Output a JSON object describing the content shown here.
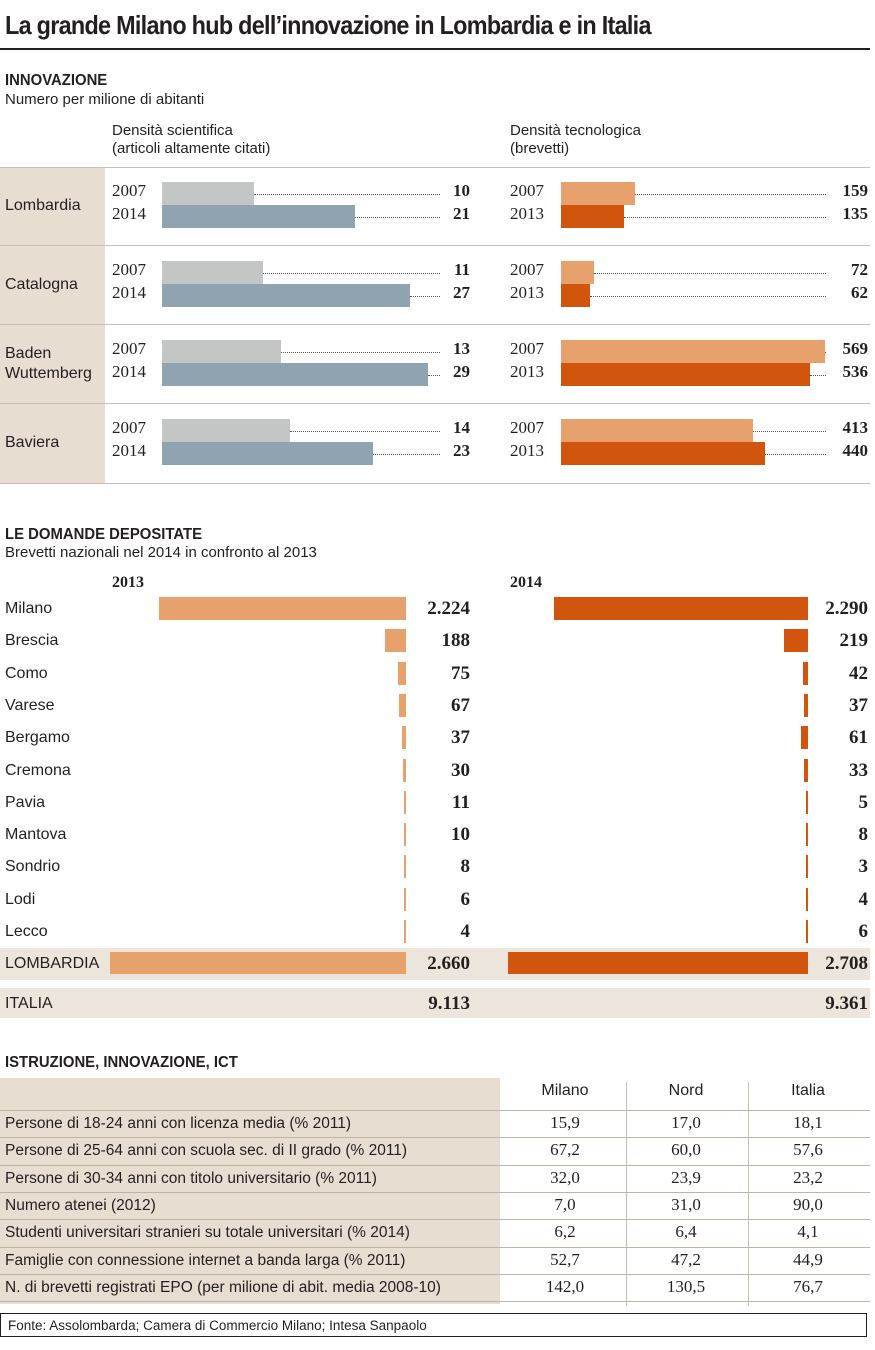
{
  "title": "La grande Milano hub dell’innovazione in Lombardia e in Italia",
  "colors": {
    "sci_a": "#c4c6c6",
    "sci_b": "#8fa3b0",
    "tec_a": "#e6a16c",
    "tec_b": "#d2550e",
    "label_bg": "#e8ddd1",
    "row_bg": "#ece5dc",
    "row_bg2": "#f2ece5"
  },
  "innovazione": {
    "heading": "INNOVAZIONE",
    "subheading": "Numero per milione di abitanti",
    "col_sci": {
      "line1": "Densità scientifica",
      "line2": "(articoli altamente citati)"
    },
    "col_tec": {
      "line1": "Densità tecnologica",
      "line2": "(brevetti)"
    },
    "rows": [
      {
        "name_l1": "Lombardia",
        "name_l2": "",
        "sci": {
          "y1": "2007",
          "v1": 10,
          "y2": "2014",
          "v2": 21
        },
        "tec": {
          "y1": "2007",
          "v1": 159,
          "y2": "2013",
          "v2": 135
        }
      },
      {
        "name_l1": "Catalogna",
        "name_l2": "",
        "sci": {
          "y1": "2007",
          "v1": 11,
          "y2": "2014",
          "v2": 27
        },
        "tec": {
          "y1": "2007",
          "v1": 72,
          "y2": "2013",
          "v2": 62
        }
      },
      {
        "name_l1": "Baden",
        "name_l2": "Wuttemberg",
        "sci": {
          "y1": "2007",
          "v1": 13,
          "y2": "2014",
          "v2": 29
        },
        "tec": {
          "y1": "2007",
          "v1": 569,
          "y2": "2013",
          "v2": 536
        }
      },
      {
        "name_l1": "Baviera",
        "name_l2": "",
        "sci": {
          "y1": "2007",
          "v1": 14,
          "y2": "2014",
          "v2": 23
        },
        "tec": {
          "y1": "2007",
          "v1": 413,
          "y2": "2013",
          "v2": 440
        }
      }
    ]
  },
  "domande": {
    "heading": "LE DOMANDE DEPOSITATE",
    "subheading": "Brevetti nazionali nel 2014 in confronto al 2013",
    "col_a": "2013",
    "col_b": "2014",
    "total_label": "LOMBARDIA",
    "total_a": "2.660",
    "total_b": "2.708",
    "italia_label": "ITALIA",
    "italia_a": "9.113",
    "italia_b": "9.361"
  },
  "istruzione": {
    "heading": "ISTRUZIONE, INNOVAZIONE, ICT",
    "columns": [
      "Milano",
      "Nord",
      "Italia"
    ],
    "rows": [
      {
        "label": "Persone di 18-24 anni con licenza media (% 2011)",
        "vals": [
          "15,9",
          "17,0",
          "18,1"
        ]
      },
      {
        "label": "Persone di 25-64 anni con scuola sec. di II grado (% 2011)",
        "vals": [
          "67,2",
          "60,0",
          "57,6"
        ]
      },
      {
        "label": "Persone di 30-34 anni con titolo universitario (% 2011)",
        "vals": [
          "32,0",
          "23,9",
          "23,2"
        ]
      },
      {
        "label": "Numero atenei (2012)",
        "vals": [
          "7,0",
          "31,0",
          "90,0"
        ]
      },
      {
        "label": "Studenti universitari stranieri su totale universitari (% 2014)",
        "vals": [
          "6,2",
          "6,4",
          "4,1"
        ]
      },
      {
        "label": "Famiglie con connessione internet a banda larga (% 2011)",
        "vals": [
          "52,7",
          "47,2",
          "44,9"
        ]
      },
      {
        "label": "N. di brevetti registrati EPO (per milione di abit. media 2008-10)",
        "vals": [
          "142,0",
          "130,5",
          "76,7"
        ]
      }
    ]
  },
  "source": "Fonte: Assolombarda; Camera di Commercio Milano; Intesa Sanpaolo",
  "chart_data": [
    {
      "type": "bar",
      "title": "Densità scientifica (articoli altamente citati)",
      "categories": [
        "Lombardia",
        "Catalogna",
        "Baden Wuttemberg",
        "Baviera"
      ],
      "series": [
        {
          "name": "2007",
          "values": [
            10,
            11,
            13,
            14
          ]
        },
        {
          "name": "2014",
          "values": [
            21,
            27,
            29,
            23
          ]
        }
      ],
      "xlim": [
        0,
        30
      ]
    },
    {
      "type": "bar",
      "title": "Densità tecnologica (brevetti)",
      "categories": [
        "Lombardia",
        "Catalogna",
        "Baden Wuttemberg",
        "Baviera"
      ],
      "series": [
        {
          "name": "2007",
          "values": [
            159,
            72,
            569,
            413
          ]
        },
        {
          "name": "2013",
          "values": [
            135,
            62,
            536,
            440
          ]
        }
      ],
      "xlim": [
        0,
        580
      ]
    },
    {
      "type": "bar",
      "title": "Brevetti nazionali nel 2014 in confronto al 2013",
      "categories": [
        "Milano",
        "Brescia",
        "Como",
        "Varese",
        "Bergamo",
        "Cremona",
        "Pavia",
        "Mantova",
        "Sondrio",
        "Lodi",
        "Lecco"
      ],
      "series": [
        {
          "name": "2013",
          "values": [
            2224,
            188,
            75,
            67,
            37,
            30,
            11,
            10,
            8,
            6,
            4
          ],
          "labels": [
            "2.224",
            "188",
            "75",
            "67",
            "37",
            "30",
            "11",
            "10",
            "8",
            "6",
            "4"
          ]
        },
        {
          "name": "2014",
          "values": [
            2290,
            219,
            42,
            37,
            61,
            33,
            5,
            8,
            3,
            4,
            6
          ],
          "labels": [
            "2.290",
            "219",
            "42",
            "37",
            "61",
            "33",
            "5",
            "8",
            "3",
            "4",
            "6"
          ]
        }
      ],
      "totals": {
        "Lombardia": [
          2660,
          2708
        ],
        "Italia": [
          9113,
          9361
        ]
      }
    }
  ]
}
